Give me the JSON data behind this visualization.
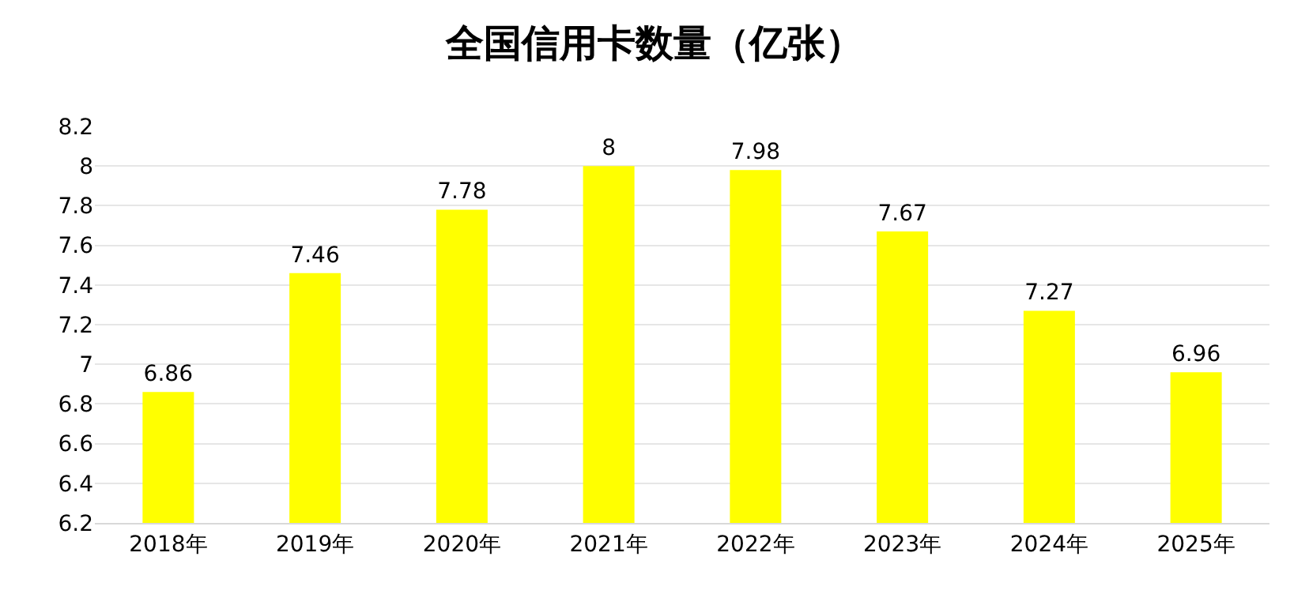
{
  "chart_data": {
    "type": "bar",
    "title": "全国信用卡数量（亿张）",
    "categories": [
      "2018年",
      "2019年",
      "2020年",
      "2021年",
      "2022年",
      "2023年",
      "2024年",
      "2025年"
    ],
    "values": [
      6.86,
      7.46,
      7.78,
      8,
      7.98,
      7.67,
      7.27,
      6.96
    ],
    "color": "#ffff00",
    "ylim": [
      6.2,
      8.2
    ],
    "yticks": [
      6.2,
      6.4,
      6.6,
      6.8,
      7,
      7.2,
      7.4,
      7.6,
      7.8,
      8,
      8.2
    ],
    "grid": "y",
    "data_labels": true,
    "legend": false
  }
}
